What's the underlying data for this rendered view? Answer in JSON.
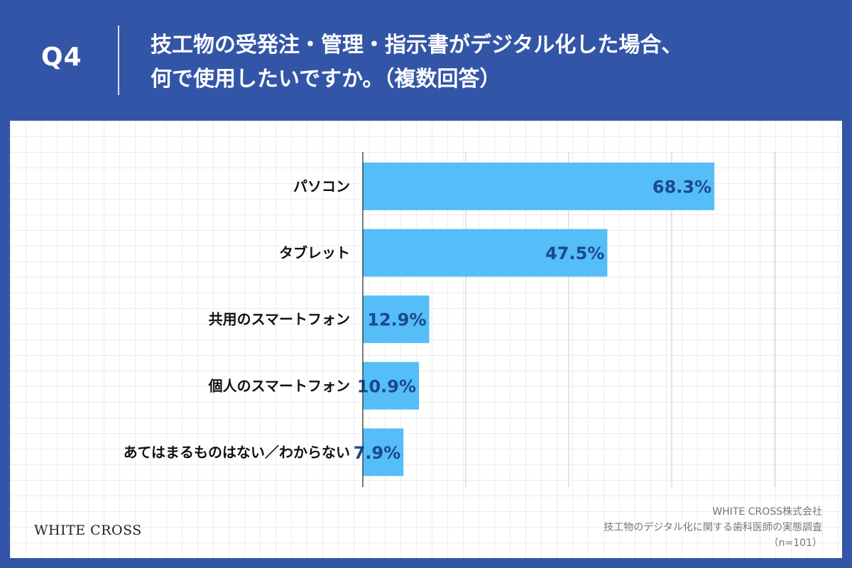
{
  "header": {
    "q_label": "Q4",
    "question_line1": "技工物の受発注・管理・指示書がデジタル化した場合、",
    "question_line2": "何で使用したいですか。（複数回答）"
  },
  "footer": {
    "logo": "WHITE CROSS",
    "source_company": "WHITE CROSS株式会社",
    "source_survey": "技工物のデジタル化に関する歯科医師の実態調査",
    "source_n": "（n=101）"
  },
  "colors": {
    "background": "#3355a8",
    "bar": "#55bdf8",
    "value_label": "#1a4a8c"
  },
  "chart_data": {
    "type": "bar",
    "orientation": "horizontal",
    "title": "",
    "xlabel": "",
    "ylabel": "",
    "xlim": [
      0,
      80
    ],
    "grid": true,
    "categories": [
      "パソコン",
      "タブレット",
      "共用のスマートフォン",
      "個人のスマートフォン",
      "あてはまるものはない／わからない"
    ],
    "values": [
      68.3,
      47.5,
      12.9,
      10.9,
      7.9
    ],
    "value_labels": [
      "68.3%",
      "47.5%",
      "12.9%",
      "10.9%",
      "7.9%"
    ]
  }
}
